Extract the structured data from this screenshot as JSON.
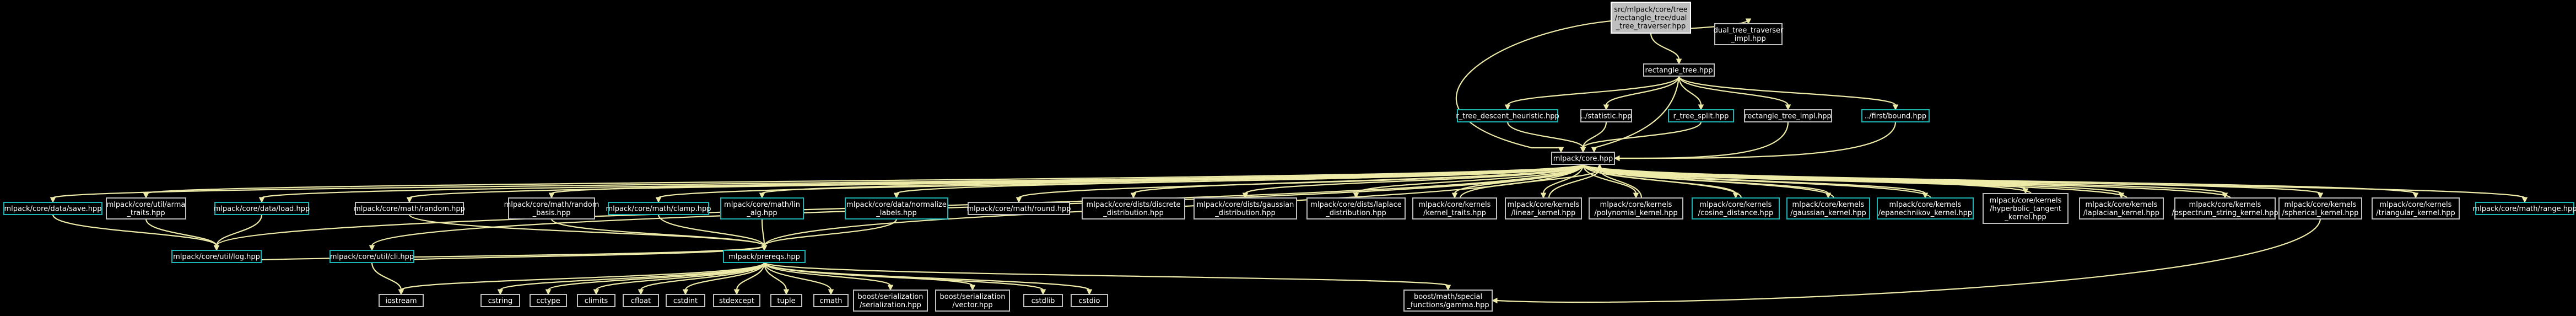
{
  "colors": {
    "background": "#000000",
    "edge": "#eeeaa8",
    "linked_border": "#1ab5b5",
    "plain_border": "#bfbfbf",
    "root_fill": "#bfbfbf"
  },
  "nodes": {
    "root": [
      "src/mlpack/core/tree",
      "/rectangle_tree/dual",
      "_tree_traverser.hpp"
    ],
    "dual_impl": [
      "dual_tree_traverser",
      "_impl.hpp"
    ],
    "rectangle_tree": [
      "rectangle_tree.hpp"
    ],
    "r_tree_descent": [
      "r_tree_descent_heuristic.hpp"
    ],
    "statistic": [
      "../statistic.hpp"
    ],
    "r_tree_split": [
      "r_tree_split.hpp"
    ],
    "rectangle_tree_impl": [
      "rectangle_tree_impl.hpp"
    ],
    "first_bound": [
      "../first/bound.hpp"
    ],
    "core": [
      "mlpack/core.hpp"
    ],
    "data_save": [
      "mlpack/core/data/save.hpp"
    ],
    "util_arma_traits": [
      "mlpack/core/util/arma",
      "_traits.hpp"
    ],
    "data_load": [
      "mlpack/core/data/load.hpp"
    ],
    "math_random": [
      "mlpack/core/math/random.hpp"
    ],
    "math_random_basis": [
      "mlpack/core/math/random",
      "_basis.hpp"
    ],
    "math_clamp": [
      "mlpack/core/math/clamp.hpp"
    ],
    "math_lin_alg": [
      "mlpack/core/math/lin",
      "_alg.hpp"
    ],
    "data_normalize": [
      "mlpack/core/data/normalize",
      "_labels.hpp"
    ],
    "math_round": [
      "mlpack/core/math/round.hpp"
    ],
    "dists_discrete": [
      "mlpack/core/dists/discrete",
      "_distribution.hpp"
    ],
    "dists_gaussian": [
      "mlpack/core/dists/gaussian",
      "_distribution.hpp"
    ],
    "dists_laplace": [
      "mlpack/core/dists/laplace",
      "_distribution.hpp"
    ],
    "kernel_traits": [
      "mlpack/core/kernels",
      "/kernel_traits.hpp"
    ],
    "linear_kernel": [
      "mlpack/core/kernels",
      "/linear_kernel.hpp"
    ],
    "polynomial_kernel": [
      "mlpack/core/kernels",
      "/polynomial_kernel.hpp"
    ],
    "cosine_distance": [
      "mlpack/core/kernels",
      "/cosine_distance.hpp"
    ],
    "gaussian_kernel": [
      "mlpack/core/kernels",
      "/gaussian_kernel.hpp"
    ],
    "epanechnikov_kernel": [
      "mlpack/core/kernels",
      "/epanechnikov_kernel.hpp"
    ],
    "hyperbolic_tangent": [
      "mlpack/core/kernels",
      "/hyperbolic_tangent",
      "_kernel.hpp"
    ],
    "laplacian_kernel": [
      "mlpack/core/kernels",
      "/laplacian_kernel.hpp"
    ],
    "pspectrum_string": [
      "mlpack/core/kernels",
      "/pspectrum_string_kernel.hpp"
    ],
    "spherical_kernel": [
      "mlpack/core/kernels",
      "/spherical_kernel.hpp"
    ],
    "triangular_kernel": [
      "mlpack/core/kernels",
      "/triangular_kernel.hpp"
    ],
    "math_range": [
      "mlpack/core/math/range.hpp"
    ],
    "util_log": [
      "mlpack/core/util/log.hpp"
    ],
    "util_cli": [
      "mlpack/core/util/cli.hpp"
    ],
    "prereqs": [
      "mlpack/prereqs.hpp"
    ],
    "iostream": [
      "iostream"
    ],
    "cstring": [
      "cstring"
    ],
    "cctype": [
      "cctype"
    ],
    "climits": [
      "climits"
    ],
    "cfloat": [
      "cfloat"
    ],
    "cstdint": [
      "cstdint"
    ],
    "stdexcept": [
      "stdexcept"
    ],
    "tuple": [
      "tuple"
    ],
    "cmath": [
      "cmath"
    ],
    "boost_serialization_serialization": [
      "boost/serialization",
      "/serialization.hpp"
    ],
    "boost_serialization_vector": [
      "boost/serialization",
      "/vector.hpp"
    ],
    "cstdlib": [
      "cstdlib"
    ],
    "cstdio": [
      "cstdio"
    ],
    "boost_math_gamma": [
      "boost/math/special",
      "_functions/gamma.hpp"
    ]
  }
}
